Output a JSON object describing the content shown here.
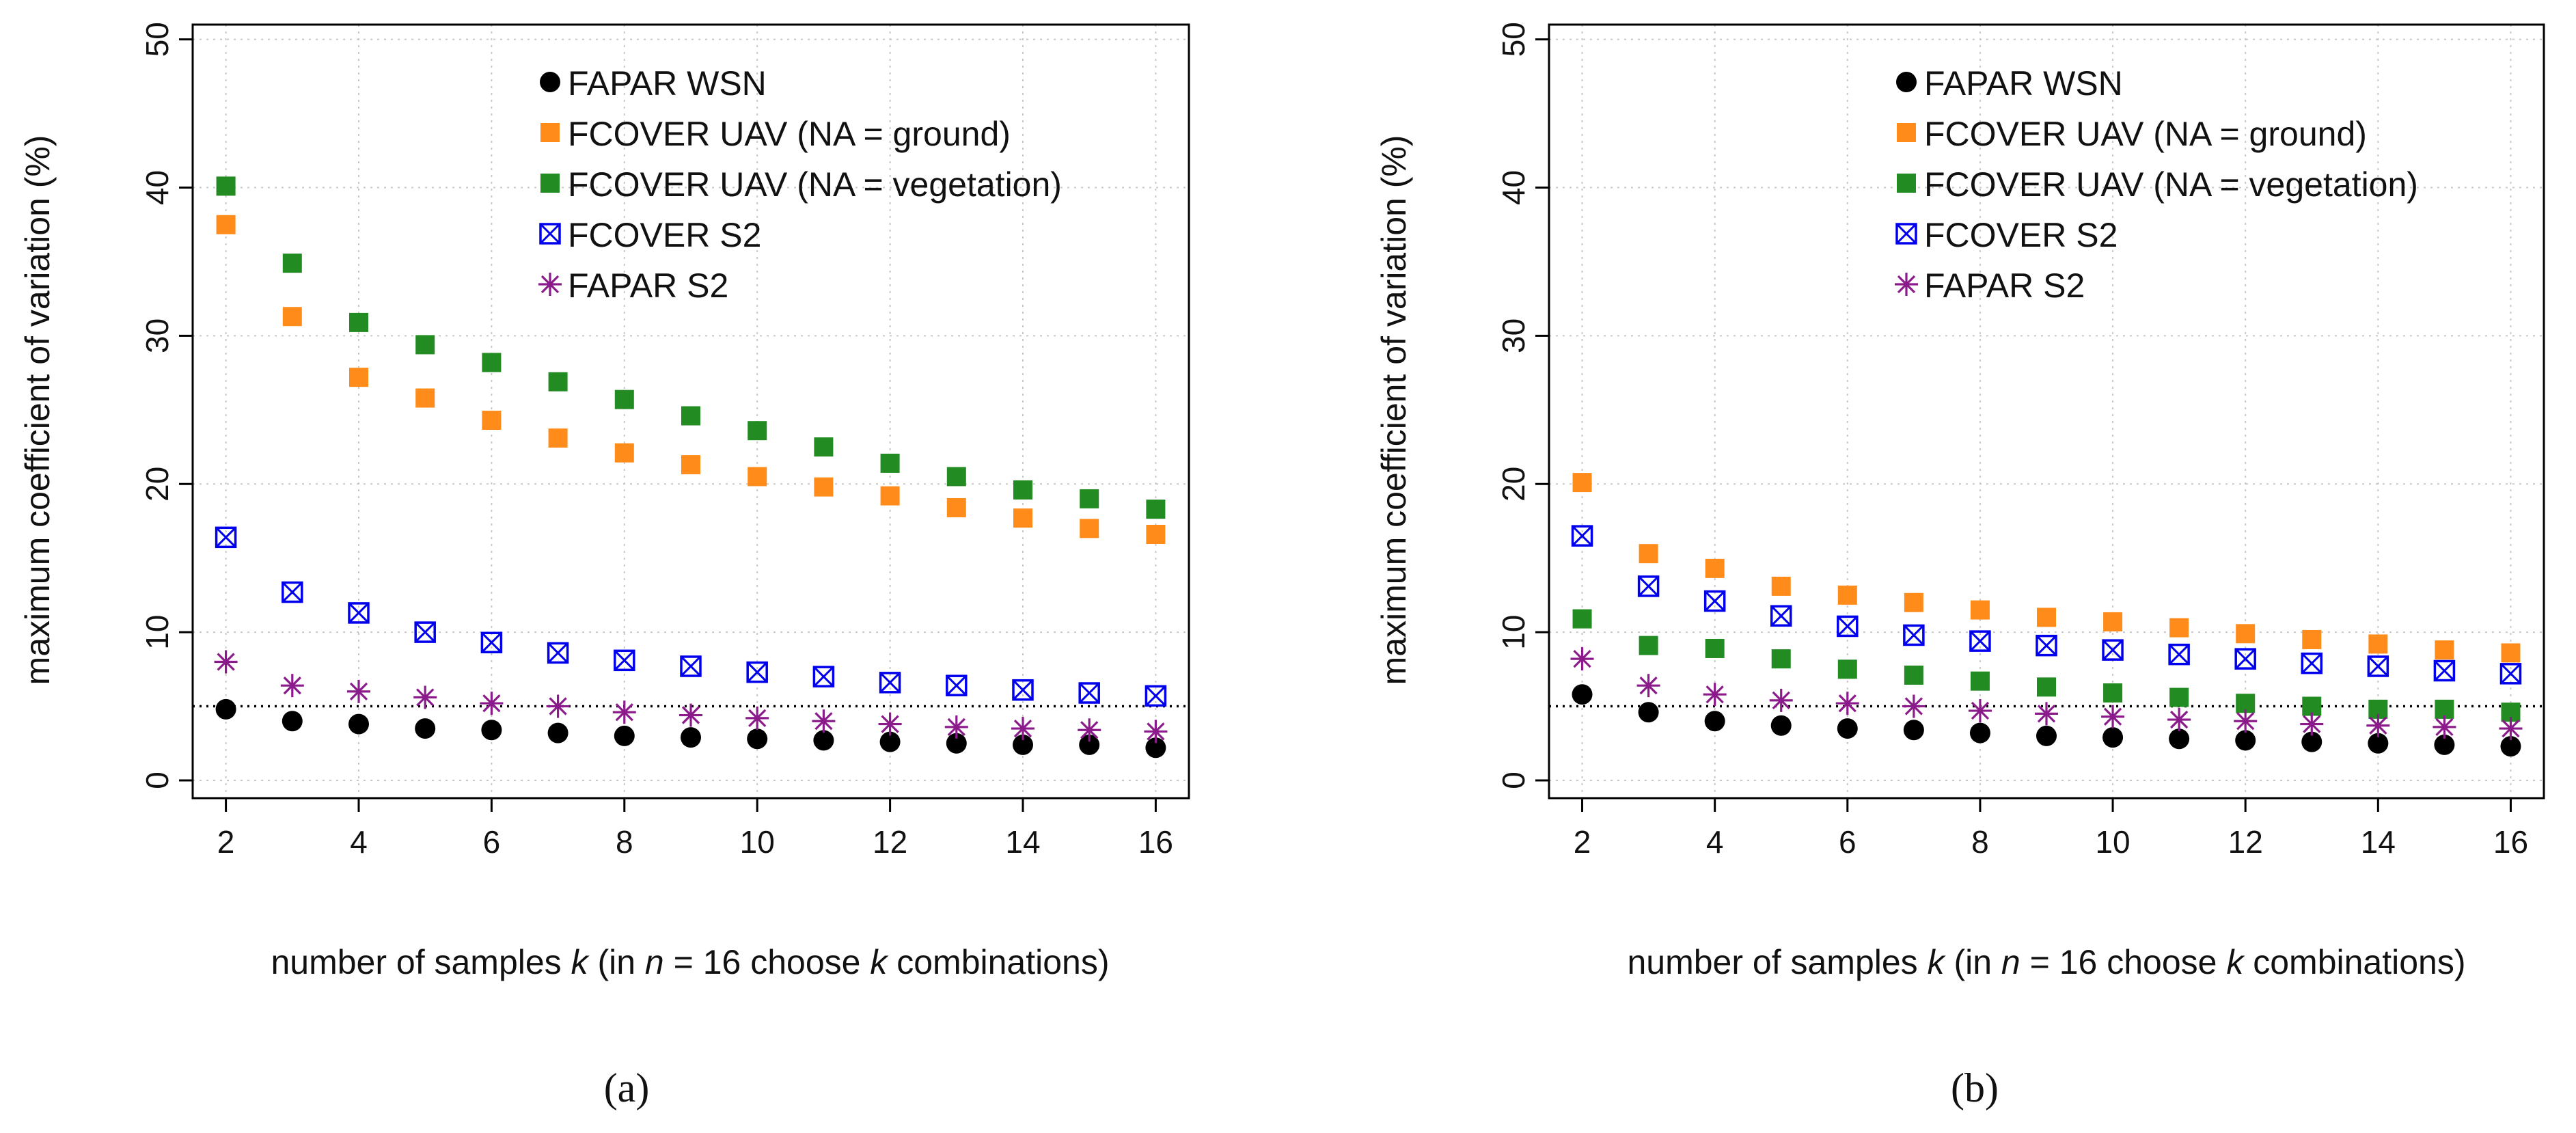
{
  "colors": {
    "fapar_wsn": "#000000",
    "fcover_uav_ground": "#ff8c1a",
    "fcover_uav_veg": "#228b22",
    "fcover_s2": "#0000ee",
    "fapar_s2": "#8b1a8b",
    "grid": "#c8c8c8",
    "axis": "#000000"
  },
  "chart_data": [
    {
      "type": "scatter",
      "panel_label": "a",
      "caption": "(a)",
      "xlabel_parts": {
        "p1": "number of samples ",
        "k1": "k",
        "p2": " (in ",
        "n": "n",
        "p3": " = 16 choose ",
        "k2": "k",
        "p4": " combinations)"
      },
      "ylabel": "maximum coefficient of variation (%)",
      "xlim": [
        1.5,
        16.5
      ],
      "ylim": [
        -1.2,
        51
      ],
      "x_ticks": [
        2,
        4,
        6,
        8,
        10,
        12,
        14,
        16
      ],
      "y_ticks": [
        0,
        10,
        20,
        30,
        40,
        50
      ],
      "reference_line_y": 5,
      "legend_position": "top-center",
      "x": [
        2,
        3,
        4,
        5,
        6,
        7,
        8,
        9,
        10,
        11,
        12,
        13,
        14,
        15,
        16
      ],
      "series": [
        {
          "name": "FAPAR WSN",
          "marker": "circle",
          "values": [
            4.8,
            4.0,
            3.8,
            3.5,
            3.4,
            3.2,
            3.0,
            2.9,
            2.8,
            2.7,
            2.6,
            2.5,
            2.4,
            2.4,
            2.2
          ]
        },
        {
          "name": "FCOVER UAV (NA = ground)",
          "marker": "square-orange",
          "values": [
            37.5,
            31.3,
            27.2,
            25.8,
            24.3,
            23.1,
            22.1,
            21.3,
            20.5,
            19.8,
            19.2,
            18.4,
            17.7,
            17.0,
            16.6
          ]
        },
        {
          "name": "FCOVER UAV (NA = vegetation)",
          "marker": "square-green",
          "values": [
            40.1,
            34.9,
            30.9,
            29.4,
            28.2,
            26.9,
            25.7,
            24.6,
            23.6,
            22.5,
            21.4,
            20.5,
            19.6,
            19.0,
            18.3
          ]
        },
        {
          "name": "FCOVER S2",
          "marker": "boxed-x",
          "values": [
            16.4,
            12.7,
            11.3,
            10.0,
            9.3,
            8.6,
            8.1,
            7.7,
            7.3,
            7.0,
            6.6,
            6.4,
            6.1,
            5.9,
            5.7
          ]
        },
        {
          "name": "FAPAR S2",
          "marker": "asterisk",
          "values": [
            8.0,
            6.4,
            6.0,
            5.6,
            5.2,
            5.0,
            4.6,
            4.4,
            4.2,
            4.0,
            3.8,
            3.6,
            3.5,
            3.4,
            3.3
          ]
        }
      ]
    },
    {
      "type": "scatter",
      "panel_label": "b",
      "caption": "(b)",
      "xlabel_parts": {
        "p1": "number of samples ",
        "k1": "k",
        "p2": " (in ",
        "n": "n",
        "p3": " = 16 choose ",
        "k2": "k",
        "p4": " combinations)"
      },
      "ylabel": "maximum coefficient of variation (%)",
      "xlim": [
        1.5,
        16.5
      ],
      "ylim": [
        -1.2,
        51
      ],
      "x_ticks": [
        2,
        4,
        6,
        8,
        10,
        12,
        14,
        16
      ],
      "y_ticks": [
        0,
        10,
        20,
        30,
        40,
        50
      ],
      "reference_line_y": 5,
      "legend_position": "top-center",
      "x": [
        2,
        3,
        4,
        5,
        6,
        7,
        8,
        9,
        10,
        11,
        12,
        13,
        14,
        15,
        16
      ],
      "series": [
        {
          "name": "FAPAR WSN",
          "marker": "circle",
          "values": [
            5.8,
            4.6,
            4.0,
            3.7,
            3.5,
            3.4,
            3.2,
            3.0,
            2.9,
            2.8,
            2.7,
            2.6,
            2.5,
            2.4,
            2.3
          ]
        },
        {
          "name": "FCOVER UAV (NA = ground)",
          "marker": "square-orange",
          "values": [
            20.1,
            15.3,
            14.3,
            13.1,
            12.5,
            12.0,
            11.5,
            11.0,
            10.7,
            10.3,
            9.9,
            9.5,
            9.2,
            8.8,
            8.6
          ]
        },
        {
          "name": "FCOVER UAV (NA = vegetation)",
          "marker": "square-green",
          "values": [
            10.9,
            9.1,
            8.9,
            8.2,
            7.5,
            7.1,
            6.7,
            6.3,
            5.9,
            5.6,
            5.2,
            5.0,
            4.8,
            4.8,
            4.6
          ]
        },
        {
          "name": "FCOVER S2",
          "marker": "boxed-x",
          "values": [
            16.5,
            13.1,
            12.1,
            11.1,
            10.4,
            9.8,
            9.4,
            9.1,
            8.8,
            8.5,
            8.2,
            7.9,
            7.7,
            7.4,
            7.2
          ]
        },
        {
          "name": "FAPAR S2",
          "marker": "asterisk",
          "values": [
            8.2,
            6.4,
            5.8,
            5.4,
            5.2,
            5.0,
            4.7,
            4.5,
            4.3,
            4.1,
            4.0,
            3.8,
            3.7,
            3.6,
            3.5
          ]
        }
      ]
    }
  ]
}
